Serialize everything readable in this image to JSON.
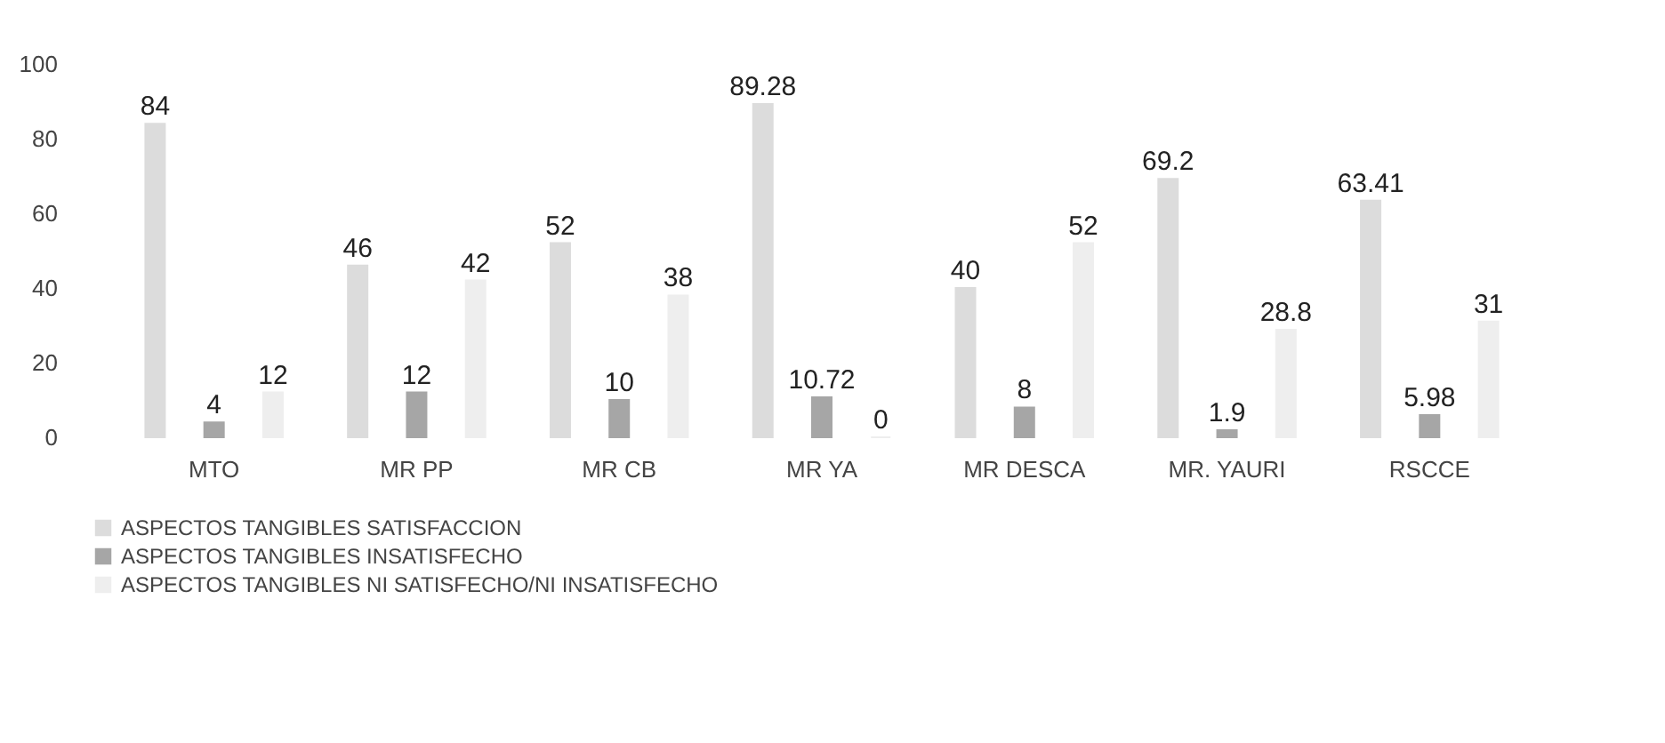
{
  "chart_data": {
    "type": "bar",
    "categories": [
      "MTO",
      "MR PP",
      "MR CB",
      "MR YA",
      "MR DESCA",
      "MR. YAURI",
      "RSCCE"
    ],
    "series": [
      {
        "name": "ASPECTOS TANGIBLES SATISFACCION",
        "color": "#dcdcdc",
        "values": [
          84,
          46,
          52,
          89.28,
          40,
          69.2,
          63.41
        ]
      },
      {
        "name": "ASPECTOS TANGIBLES INSATISFECHO",
        "color": "#a6a6a6",
        "values": [
          4,
          12,
          10,
          10.72,
          8,
          1.9,
          5.98
        ]
      },
      {
        "name": "ASPECTOS TANGIBLES NI SATISFECHO/NI INSATISFECHO",
        "color": "#eeeeee",
        "values": [
          12,
          42,
          38,
          0,
          52,
          28.8,
          31
        ]
      }
    ],
    "ylim": [
      0,
      100
    ],
    "yticks": [
      0,
      20,
      40,
      60,
      80,
      100
    ],
    "data_labels": true,
    "grid": false,
    "legend": "bottom"
  }
}
